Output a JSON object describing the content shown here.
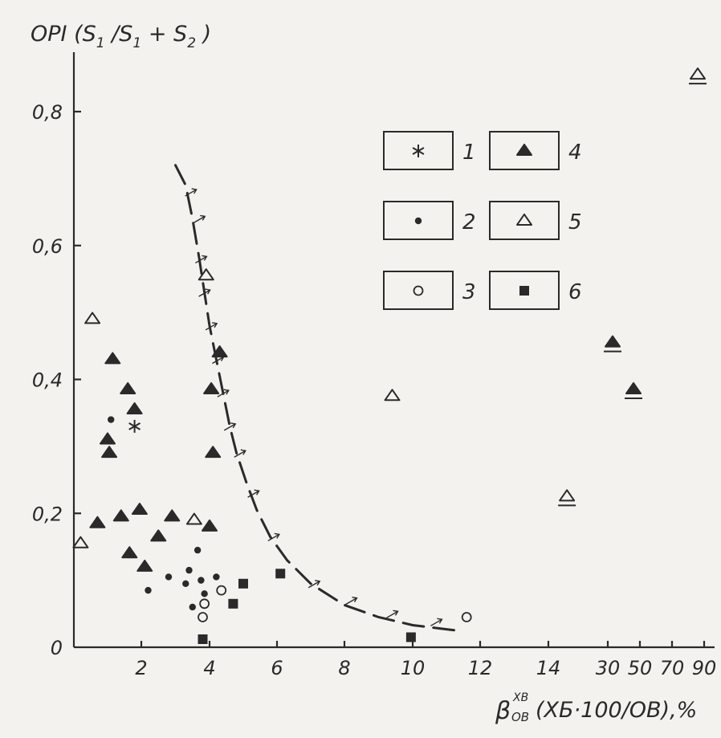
{
  "chart_data": {
    "type": "scatter",
    "title": "",
    "ylabel": "OPI (S₁ /S₁ + S₂ )",
    "xlabel": "βᵛᴮₓ (XБ·100/OB),%",
    "xlabel_parts": {
      "beta": "β",
      "sup": "XB",
      "sub": "OB",
      "rest": "(XБ·100/OB),%"
    },
    "ylabel_parts": {
      "main": "OPI (S",
      "s1": "1",
      "mid": " /S",
      "s1b": "1",
      "plus": " + S",
      "s2": "2",
      "end": " )"
    },
    "x_tick_labels": [
      "2",
      "4",
      "6",
      "8",
      "10",
      "12",
      "14",
      "30",
      "50",
      "70",
      "90"
    ],
    "y_tick_labels": [
      "0",
      "0,2",
      "0,4",
      "0,6",
      "0,8"
    ],
    "ylim": [
      0,
      0.88
    ],
    "grid": false,
    "legend_placement": "top-right",
    "legend": [
      {
        "id": "1",
        "label": "1",
        "marker": "asterisk"
      },
      {
        "id": "2",
        "label": "2",
        "marker": "dot"
      },
      {
        "id": "3",
        "label": "3",
        "marker": "open-circle"
      },
      {
        "id": "4",
        "label": "4",
        "marker": "filled-triangle"
      },
      {
        "id": "5",
        "label": "5",
        "marker": "open-triangle"
      },
      {
        "id": "6",
        "label": "6",
        "marker": "filled-square"
      }
    ],
    "series": [
      {
        "id": "1",
        "marker": "asterisk",
        "points": [
          [
            1.8,
            0.33
          ]
        ]
      },
      {
        "id": "2",
        "marker": "dot",
        "points": [
          [
            1.1,
            0.34
          ],
          [
            2.2,
            0.085
          ],
          [
            2.8,
            0.105
          ],
          [
            3.3,
            0.095
          ],
          [
            3.4,
            0.115
          ],
          [
            3.5,
            0.06
          ],
          [
            3.65,
            0.145
          ],
          [
            3.75,
            0.1
          ],
          [
            3.85,
            0.08
          ],
          [
            4.2,
            0.105
          ]
        ]
      },
      {
        "id": "3",
        "marker": "open-circle",
        "points": [
          [
            3.8,
            0.045
          ],
          [
            3.85,
            0.065
          ],
          [
            4.35,
            0.085
          ],
          [
            11.6,
            0.045
          ]
        ]
      },
      {
        "id": "4",
        "marker": "filled-triangle",
        "points": [
          [
            0.7,
            0.185
          ],
          [
            1.0,
            0.31
          ],
          [
            1.05,
            0.29
          ],
          [
            1.15,
            0.43
          ],
          [
            1.4,
            0.195
          ],
          [
            1.6,
            0.385
          ],
          [
            1.65,
            0.14
          ],
          [
            1.8,
            0.355
          ],
          [
            1.95,
            0.205
          ],
          [
            2.1,
            0.12
          ],
          [
            2.5,
            0.165
          ],
          [
            2.9,
            0.195
          ],
          [
            4.0,
            0.18
          ],
          [
            4.05,
            0.385
          ],
          [
            4.1,
            0.29
          ],
          [
            4.3,
            0.44
          ],
          [
            33,
            0.455
          ],
          [
            46,
            0.385
          ]
        ]
      },
      {
        "id": "5",
        "marker": "open-triangle",
        "points": [
          [
            0.2,
            0.155
          ],
          [
            0.55,
            0.49
          ],
          [
            3.55,
            0.19
          ],
          [
            3.9,
            0.555
          ],
          [
            9.4,
            0.375
          ],
          [
            19,
            0.225
          ],
          [
            86,
            0.855
          ]
        ]
      },
      {
        "id": "6",
        "marker": "filled-square",
        "points": [
          [
            3.8,
            0.012
          ],
          [
            4.7,
            0.065
          ],
          [
            5.0,
            0.095
          ],
          [
            6.1,
            0.11
          ],
          [
            9.95,
            0.015
          ]
        ]
      }
    ],
    "boundary_curve": {
      "style": "dashed-with-arrows",
      "points": [
        [
          3.0,
          0.72
        ],
        [
          3.3,
          0.69
        ],
        [
          3.5,
          0.64
        ],
        [
          3.7,
          0.58
        ],
        [
          3.85,
          0.53
        ],
        [
          4.0,
          0.48
        ],
        [
          4.2,
          0.43
        ],
        [
          4.4,
          0.38
        ],
        [
          4.6,
          0.33
        ],
        [
          4.8,
          0.29
        ],
        [
          5.1,
          0.245
        ],
        [
          5.4,
          0.205
        ],
        [
          5.8,
          0.165
        ],
        [
          6.3,
          0.13
        ],
        [
          7.0,
          0.095
        ],
        [
          8.0,
          0.063
        ],
        [
          9.0,
          0.045
        ],
        [
          10.0,
          0.033
        ],
        [
          11.3,
          0.025
        ]
      ],
      "arrow_points": [
        [
          3.45,
          0.68
        ],
        [
          3.7,
          0.64
        ],
        [
          3.75,
          0.58
        ],
        [
          3.85,
          0.53
        ],
        [
          4.05,
          0.48
        ],
        [
          4.25,
          0.43
        ],
        [
          4.4,
          0.38
        ],
        [
          4.6,
          0.33
        ],
        [
          4.9,
          0.29
        ],
        [
          5.3,
          0.23
        ],
        [
          5.9,
          0.165
        ],
        [
          7.1,
          0.095
        ],
        [
          8.2,
          0.07
        ],
        [
          9.4,
          0.05
        ],
        [
          10.7,
          0.038
        ]
      ]
    }
  }
}
